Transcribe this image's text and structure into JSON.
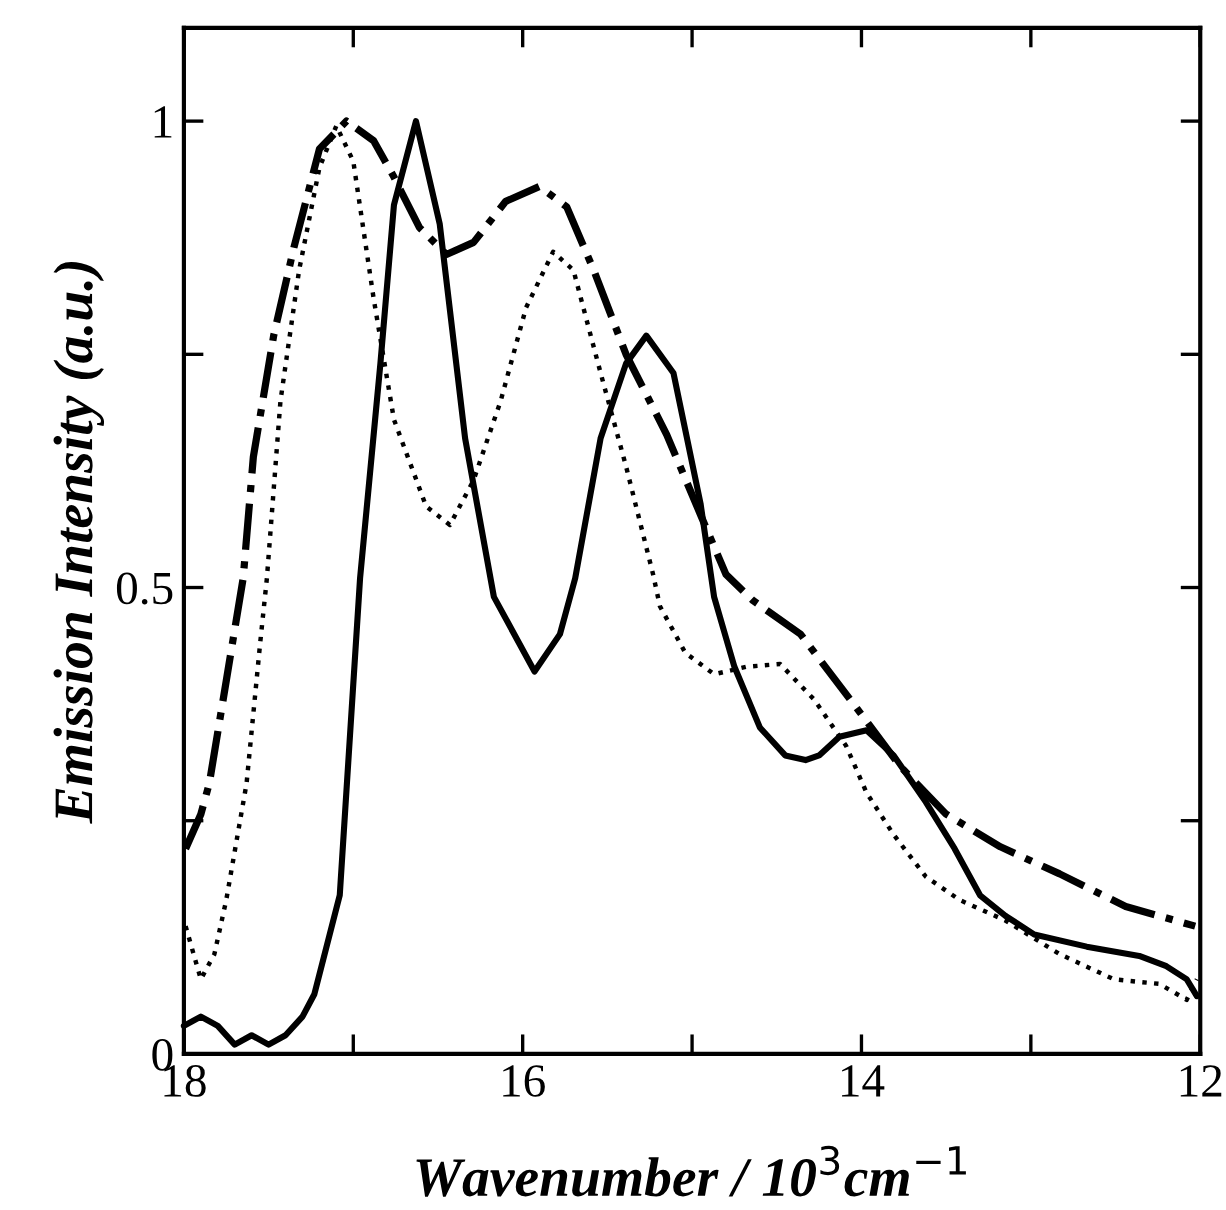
{
  "chart_data": {
    "type": "line",
    "xlabel": "Wavenumber / 10$^{3}$cm$^{−1}$",
    "ylabel": "Emission Intensity (a.u.)",
    "xlim": [
      18,
      12
    ],
    "ylim": [
      0,
      1.1
    ],
    "xticks": [
      18,
      {
        "value": 17,
        "label": null
      },
      16,
      {
        "value": 15,
        "label": null
      },
      14,
      {
        "value": 13,
        "label": null
      },
      12
    ],
    "yticks": [
      0,
      {
        "value": 0.25,
        "label": null
      },
      0.5,
      {
        "value": 0.75,
        "label": null
      },
      1
    ],
    "marker": "none",
    "series": [
      {
        "color": "#000000",
        "line_style": "solid",
        "x": [
          18,
          17.9,
          17.8,
          17.7,
          17.6,
          17.5,
          17.4,
          17.3,
          17.23,
          17.08,
          16.96,
          16.84,
          16.76,
          16.63,
          16.49,
          16.34,
          16.17,
          15.93,
          15.78,
          15.69,
          15.54,
          15.39,
          15.27,
          15.11,
          14.95,
          14.87,
          14.75,
          14.6,
          14.45,
          14.33,
          14.25,
          14.13,
          13.97,
          13.81,
          13.62,
          13.45,
          13.3,
          13.15,
          12.98,
          12.67,
          12.36,
          12.2,
          12.08,
          12.02
        ],
        "values": [
          0.03,
          0.04,
          0.03,
          0.01,
          0.02,
          0.01,
          0.02,
          0.04,
          0.064,
          0.17,
          0.51,
          0.74,
          0.91,
          1.0,
          0.89,
          0.66,
          0.49,
          0.41,
          0.45,
          0.51,
          0.66,
          0.74,
          0.77,
          0.73,
          0.59,
          0.49,
          0.415,
          0.35,
          0.32,
          0.315,
          0.32,
          0.34,
          0.347,
          0.32,
          0.27,
          0.22,
          0.17,
          0.148,
          0.128,
          0.115,
          0.105,
          0.094,
          0.08,
          0.062
        ]
      },
      {
        "color": "#000000",
        "line_style": "dotted",
        "x": [
          17.99,
          17.9,
          17.82,
          17.75,
          17.63,
          17.55,
          17.51,
          17.43,
          17.32,
          17.2,
          17.1,
          17.0,
          16.88,
          16.76,
          16.57,
          16.43,
          16.29,
          16.13,
          15.98,
          15.82,
          15.7,
          15.54,
          15.39,
          15.23,
          15.19,
          15.04,
          14.87,
          14.68,
          14.48,
          14.28,
          14.09,
          13.97,
          13.81,
          13.62,
          13.42,
          13.15,
          12.83,
          12.51,
          12.24,
          12.08,
          12.02
        ],
        "values": [
          0.137,
          0.08,
          0.107,
          0.165,
          0.29,
          0.44,
          0.51,
          0.7,
          0.84,
          0.95,
          0.995,
          0.957,
          0.81,
          0.68,
          0.587,
          0.567,
          0.615,
          0.7,
          0.8,
          0.86,
          0.84,
          0.73,
          0.63,
          0.514,
          0.48,
          0.43,
          0.407,
          0.415,
          0.418,
          0.38,
          0.33,
          0.28,
          0.235,
          0.19,
          0.165,
          0.143,
          0.107,
          0.08,
          0.075,
          0.058,
          0.08
        ]
      },
      {
        "color": "#000000",
        "line_style": "dashdot",
        "x": [
          17.99,
          17.9,
          17.85,
          17.75,
          17.65,
          17.59,
          17.47,
          17.35,
          17.2,
          17.04,
          16.88,
          16.76,
          16.61,
          16.45,
          16.29,
          16.1,
          15.9,
          15.74,
          15.58,
          15.39,
          15.15,
          14.95,
          14.8,
          14.64,
          14.36,
          14.0,
          13.77,
          13.5,
          13.18,
          12.83,
          12.44,
          12.03
        ],
        "values": [
          0.22,
          0.257,
          0.29,
          0.4,
          0.51,
          0.64,
          0.77,
          0.865,
          0.97,
          1.0,
          0.979,
          0.94,
          0.886,
          0.857,
          0.87,
          0.914,
          0.93,
          0.908,
          0.84,
          0.75,
          0.664,
          0.578,
          0.514,
          0.486,
          0.45,
          0.364,
          0.308,
          0.257,
          0.222,
          0.193,
          0.158,
          0.137
        ]
      }
    ]
  }
}
